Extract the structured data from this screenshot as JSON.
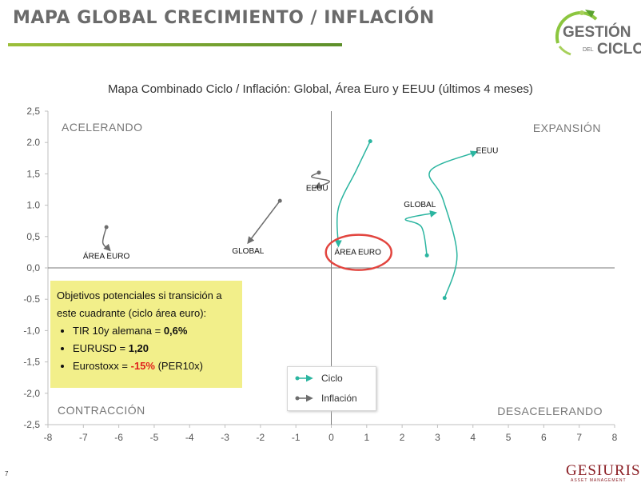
{
  "slide": {
    "title": "MAPA GLOBAL CRECIMIENTO / INFLACIÓN",
    "logo_line1": "GESTIÓN",
    "logo_small": "DEL",
    "logo_line2": "CICLO",
    "page_number": "7",
    "brand": "GESIURIS",
    "brand_sub": "ASSET MANAGEMENT"
  },
  "note": {
    "heading": "Objetivos potenciales si transición a este cuadrante (ciclo área euro):",
    "items": [
      {
        "label": "TIR 10y alemana = ",
        "value": "0,6%"
      },
      {
        "label": "EURUSD = ",
        "value": "1,20"
      },
      {
        "label": "Eurostoxx = ",
        "value": "-15%",
        "suffix": " (PER10x)"
      }
    ]
  },
  "chart_data": {
    "type": "line",
    "title": "Mapa Combinado Ciclo / Inflación: Global, Área Euro y EEUU (últimos 4 meses)",
    "xlim": [
      -8,
      8
    ],
    "ylim": [
      -2.5,
      2.5
    ],
    "x_ticks": [
      "-8",
      "-7",
      "-6",
      "-5",
      "-4",
      "-3",
      "-2",
      "-1",
      "0",
      "1",
      "2",
      "3",
      "4",
      "5",
      "6",
      "7",
      "8"
    ],
    "y_ticks": [
      "2,5",
      "2.0",
      "1,5",
      "1.0",
      "0,5",
      "0,0",
      "-0.5",
      "-1,0",
      "-1,5",
      "-2,0",
      "-2,5"
    ],
    "quadrants": {
      "top_left": "ACELERANDO",
      "top_right": "EXPANSIÓN",
      "bottom_left": "CONTRACCIÓN",
      "bottom_right": "DESACELERANDO"
    },
    "legend": [
      {
        "name": "Ciclo",
        "color": "#2bb5a0"
      },
      {
        "name": "Inflación",
        "color": "#6d6d6d"
      }
    ],
    "series": [
      {
        "type": "Ciclo",
        "color": "#2bb5a0",
        "label": "EEUU",
        "points": [
          [
            3.2,
            -0.48
          ],
          [
            3.55,
            0.2
          ],
          [
            3.15,
            1.1
          ],
          [
            2.8,
            1.55
          ],
          [
            4.1,
            1.85
          ]
        ],
        "label_pos": [
          4.4,
          1.88
        ]
      },
      {
        "type": "Ciclo",
        "color": "#2bb5a0",
        "label": "GLOBAL",
        "points": [
          [
            2.7,
            0.2
          ],
          [
            2.55,
            0.65
          ],
          [
            2.1,
            0.78
          ],
          [
            2.95,
            0.88
          ]
        ],
        "label_pos": [
          2.5,
          1.02
        ]
      },
      {
        "type": "Ciclo",
        "color": "#2bb5a0",
        "label": "ÁREA EURO",
        "points": [
          [
            1.1,
            2.02
          ],
          [
            0.7,
            1.55
          ],
          [
            0.2,
            0.95
          ],
          [
            0.2,
            0.35
          ]
        ],
        "label_pos": [
          0.75,
          0.26
        ]
      },
      {
        "type": "Inflación",
        "color": "#6d6d6d",
        "label": "EEUU",
        "points": [
          [
            -0.35,
            1.52
          ],
          [
            -0.55,
            1.45
          ],
          [
            -0.05,
            1.38
          ],
          [
            -0.45,
            1.28
          ]
        ],
        "label_pos": [
          -0.4,
          1.28
        ]
      },
      {
        "type": "Inflación",
        "color": "#6d6d6d",
        "label": "GLOBAL",
        "points": [
          [
            -1.45,
            1.07
          ],
          [
            -2.35,
            0.4
          ]
        ],
        "label_pos": [
          -2.35,
          0.28
        ]
      },
      {
        "type": "Inflación",
        "color": "#6d6d6d",
        "label": "ÁREA EURO",
        "points": [
          [
            -6.35,
            0.65
          ],
          [
            -6.45,
            0.4
          ],
          [
            -6.25,
            0.28
          ]
        ],
        "label_pos": [
          -6.35,
          0.2
        ]
      }
    ],
    "highlight_label": "ÁREA EURO"
  }
}
